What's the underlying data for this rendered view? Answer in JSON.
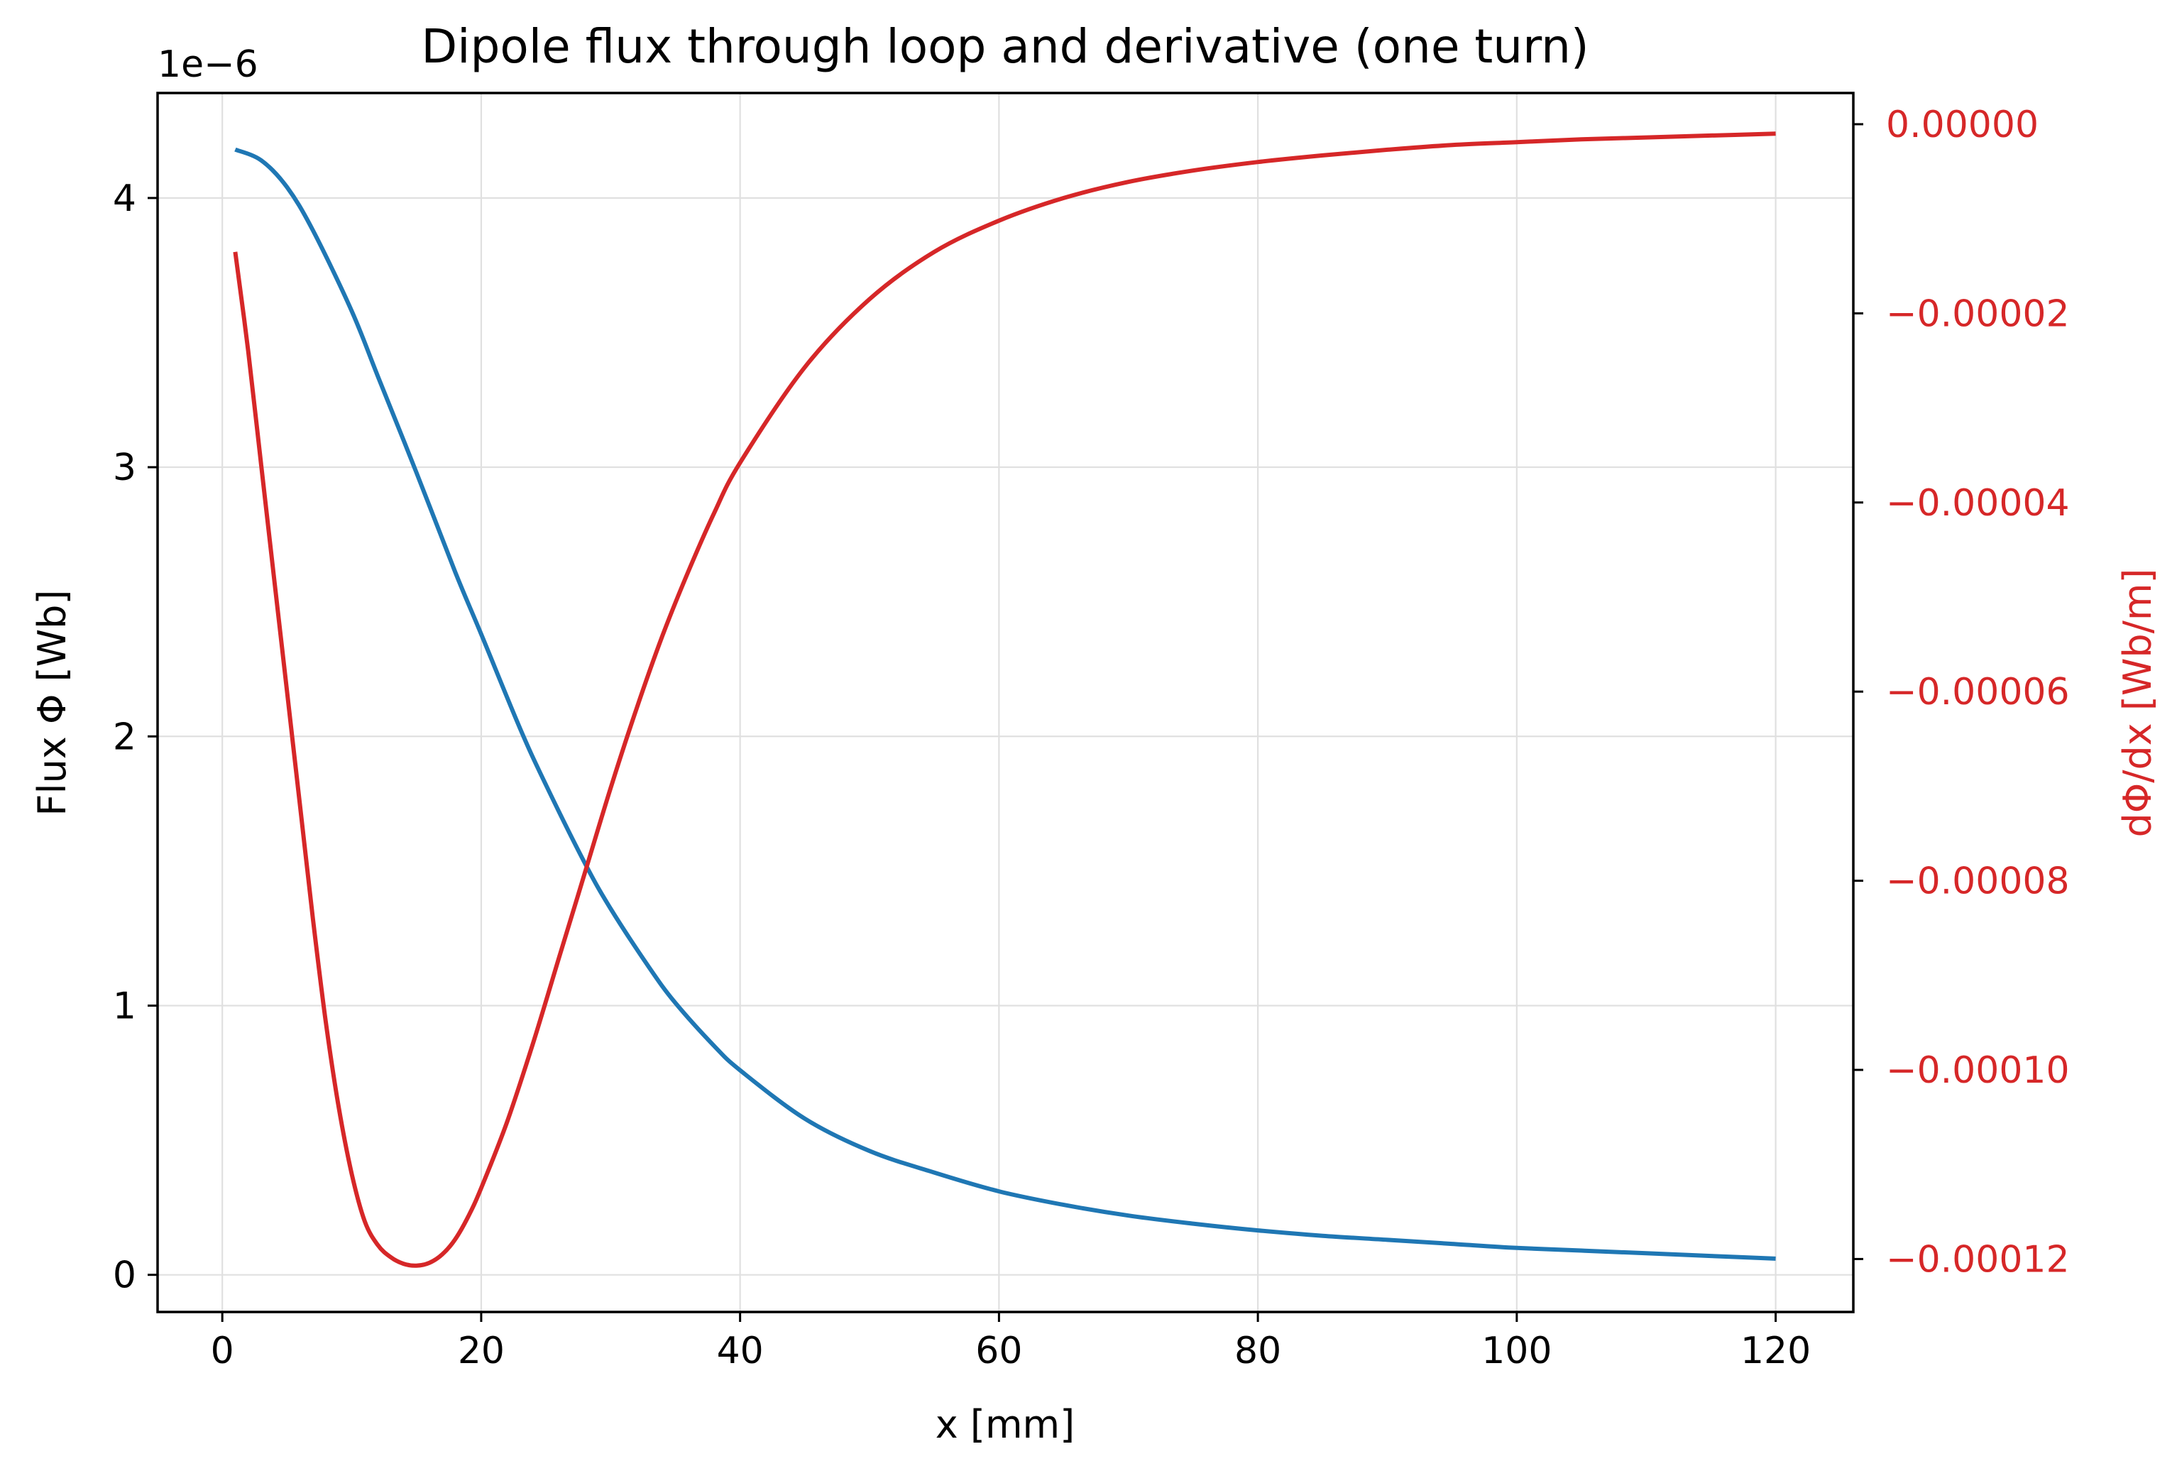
{
  "chart_data": {
    "type": "line",
    "title": "Dipole flux through loop and derivative (one turn)",
    "xlabel": "x [mm]",
    "ylabel_left": "Flux Φ [Wb]",
    "ylabel_right": "dΦ/dx [Wb/m]",
    "left_offset_label": "1e−6",
    "xlim": [
      -5.0,
      126.0
    ],
    "ylim_left": [
      -0.138,
      4.39
    ],
    "ylim_right": [
      -0.0001256,
      3.3e-06
    ],
    "grid": true,
    "x_ticks": [
      0,
      20,
      40,
      60,
      80,
      100,
      120
    ],
    "x_tick_labels": [
      "0",
      "20",
      "40",
      "60",
      "80",
      "100",
      "120"
    ],
    "left_ticks": [
      0,
      1,
      2,
      3,
      4
    ],
    "left_tick_labels": [
      "0",
      "1",
      "2",
      "3",
      "4"
    ],
    "right_ticks": [
      0,
      -2e-05,
      -4e-05,
      -6e-05,
      -8e-05,
      -0.0001,
      -0.00012
    ],
    "right_tick_labels": [
      "0.00000",
      "−0.00002",
      "−0.00004",
      "−0.00006",
      "−0.00008",
      "−0.00010",
      "−0.00012"
    ],
    "colors": {
      "flux": "#1f77b4",
      "derivative": "#d62728",
      "axis": "#000000",
      "grid": "#e0e0e0"
    },
    "series": [
      {
        "name": "Flux Φ",
        "axis": "left",
        "color": "#1f77b4",
        "x": [
          1,
          3,
          5,
          7,
          10,
          12,
          15,
          18,
          20,
          23,
          25,
          28,
          30,
          33,
          35,
          38,
          40,
          45,
          50,
          55,
          60,
          65,
          70,
          75,
          80,
          85,
          90,
          95,
          100,
          105,
          110,
          115,
          120
        ],
        "y": [
          4.18,
          4.14,
          4.04,
          3.88,
          3.58,
          3.34,
          2.98,
          2.61,
          2.38,
          2.03,
          1.82,
          1.53,
          1.36,
          1.14,
          1.01,
          0.85,
          0.76,
          0.58,
          0.46,
          0.38,
          0.31,
          0.26,
          0.22,
          0.19,
          0.165,
          0.145,
          0.13,
          0.115,
          0.1,
          0.09,
          0.08,
          0.07,
          0.06
        ]
      },
      {
        "name": "dΦ/dx",
        "axis": "right",
        "color": "#d62728",
        "x": [
          1,
          2,
          3,
          4,
          5,
          6,
          7,
          8,
          9,
          10,
          11,
          12,
          13,
          14,
          15,
          16,
          17,
          18,
          19,
          20,
          22,
          24,
          26,
          28,
          30,
          32,
          34,
          36,
          38,
          40,
          45,
          50,
          55,
          60,
          65,
          70,
          75,
          80,
          85,
          90,
          95,
          100,
          105,
          110,
          115,
          120
        ],
        "y": [
          -1.35e-05,
          -2.4e-05,
          -3.6e-05,
          -4.8e-05,
          -6e-05,
          -7.2e-05,
          -8.4e-05,
          -9.5e-05,
          -0.000104,
          -0.000111,
          -0.000116,
          -0.0001185,
          -0.0001198,
          -0.0001205,
          -0.0001207,
          -0.0001204,
          -0.0001195,
          -0.0001179,
          -0.0001155,
          -0.0001125,
          -0.0001055,
          -9.72e-05,
          -8.82e-05,
          -7.92e-05,
          -7.02e-05,
          -6.18e-05,
          -5.41e-05,
          -4.73e-05,
          -4.11e-05,
          -3.58e-05,
          -2.57e-05,
          -1.85e-05,
          -1.35e-05,
          -1.02e-05,
          -7.8e-06,
          -6.1e-06,
          -4.9e-06,
          -4e-06,
          -3.3e-06,
          -2.7e-06,
          -2.2e-06,
          -1.9e-06,
          -1.6e-06,
          -1.4e-06,
          -1.2e-06,
          -1e-06
        ]
      }
    ]
  }
}
